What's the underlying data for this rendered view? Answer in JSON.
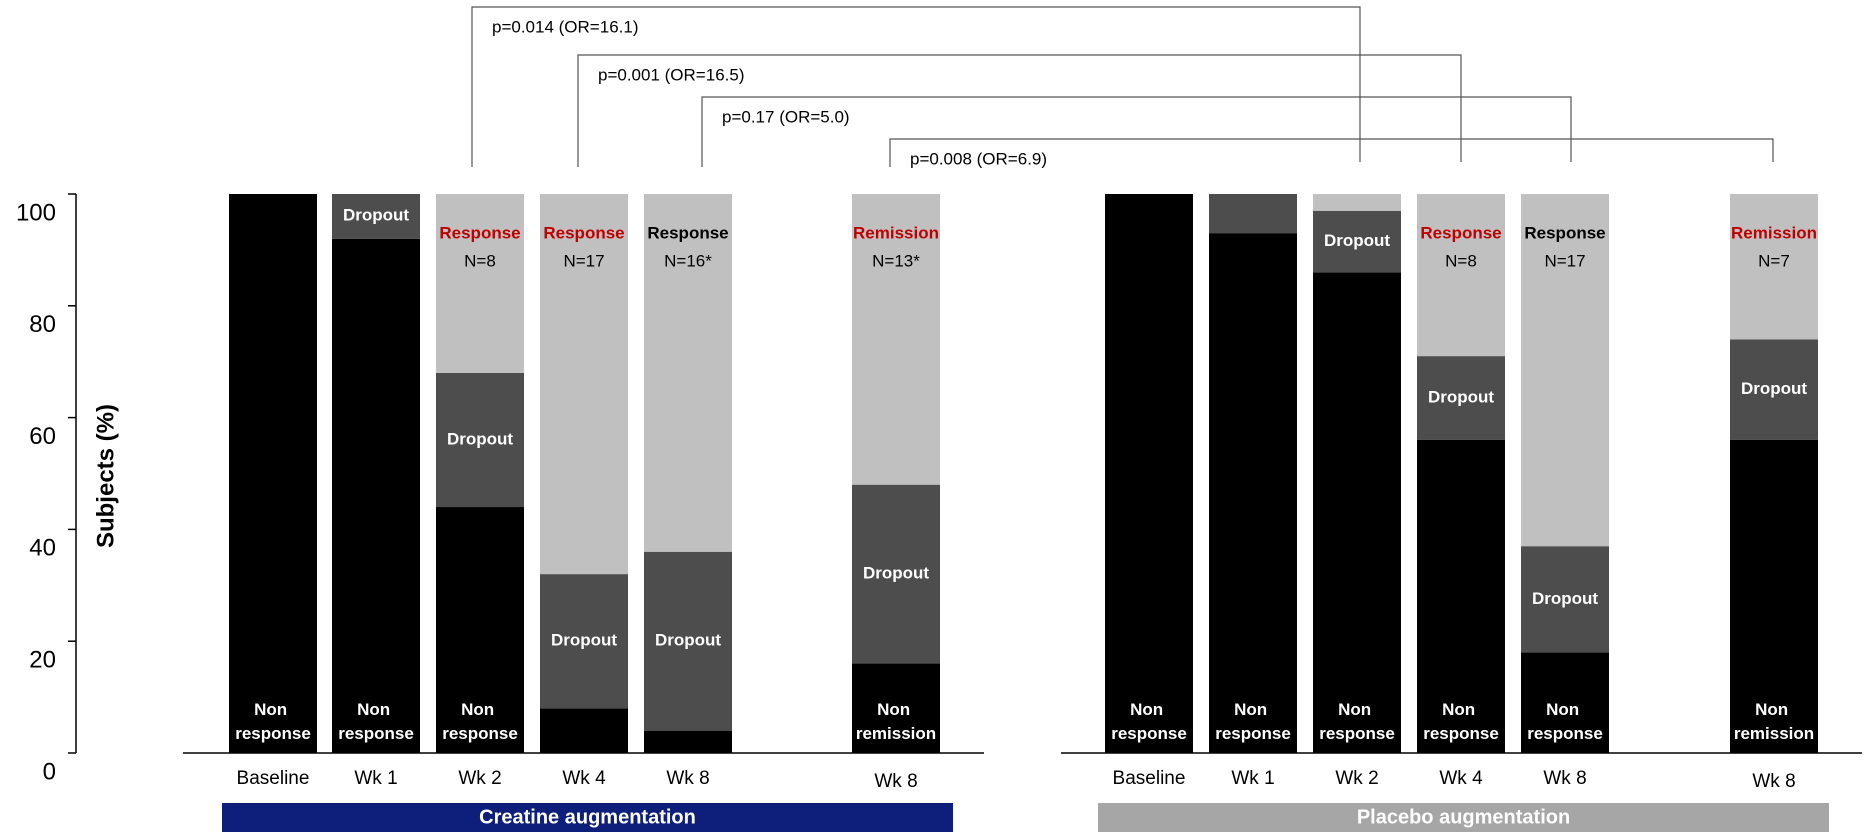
{
  "chart_data": [
    {
      "type": "bar",
      "stacked": true,
      "title": "Creatine augmentation",
      "title_color": "#0d1f7a",
      "ylabel": "Subjects (%)",
      "ylim": [
        0,
        100
      ],
      "yticks": [
        0,
        20,
        40,
        60,
        80,
        100
      ],
      "categories": [
        "Baseline",
        "Wk 1",
        "Wk 2",
        "Wk 4",
        "Wk 8",
        "Wk 8"
      ],
      "annotations": [
        "p=0.014 (OR=16.1)",
        "p=0.001 (OR=16.5)",
        "p=0.17 (OR=5.0)",
        "p=0.008 (OR=6.9)"
      ],
      "series": [
        {
          "color": "#000000",
          "values": [
            100,
            92,
            44,
            8,
            4,
            16
          ],
          "labels": [
            "Non response",
            "Non response",
            "Non response",
            null,
            null,
            "Non remission"
          ]
        },
        {
          "color": "#4d4d4d",
          "values": [
            0,
            8,
            24,
            24,
            32,
            32
          ],
          "labels": [
            null,
            "Dropout",
            "Dropout",
            "Dropout",
            "Dropout",
            "Dropout"
          ]
        },
        {
          "color": "#c0c0c0",
          "values": [
            0,
            0,
            32,
            68,
            64,
            52
          ],
          "labels": [
            null,
            null,
            "Response",
            "Response",
            "Response",
            "Remission"
          ],
          "label_colors": [
            null,
            null,
            "#c00000",
            "#c00000",
            "#000000",
            "#c00000"
          ],
          "counts": [
            null,
            null,
            "N=8",
            "N=17",
            "N=16*",
            "N=13*"
          ]
        }
      ]
    },
    {
      "type": "bar",
      "stacked": true,
      "title": "Placebo augmentation",
      "title_color": "#a6a6a6",
      "ylim": [
        0,
        100
      ],
      "categories": [
        "Baseline",
        "Wk 1",
        "Wk 2",
        "Wk 4",
        "Wk 8",
        "Wk 8"
      ],
      "series": [
        {
          "color": "#000000",
          "values": [
            100,
            93,
            86,
            56,
            18,
            56
          ],
          "labels": [
            "Non response",
            "Non response",
            "Non response",
            "Non response",
            "Non response",
            "Non remission"
          ]
        },
        {
          "color": "#4d4d4d",
          "values": [
            0,
            7,
            11,
            15,
            19,
            18
          ],
          "labels": [
            null,
            null,
            "Dropout",
            "Dropout",
            "Dropout",
            "Dropout"
          ]
        },
        {
          "color": "#c0c0c0",
          "values": [
            0,
            0,
            3,
            29,
            63,
            26
          ],
          "labels": [
            null,
            null,
            null,
            "Response",
            "Response",
            "Remission"
          ],
          "label_colors": [
            null,
            null,
            null,
            "#c00000",
            "#000000",
            "#c00000"
          ],
          "counts": [
            null,
            null,
            null,
            "N=8",
            "N=17",
            "N=7"
          ]
        }
      ]
    }
  ]
}
